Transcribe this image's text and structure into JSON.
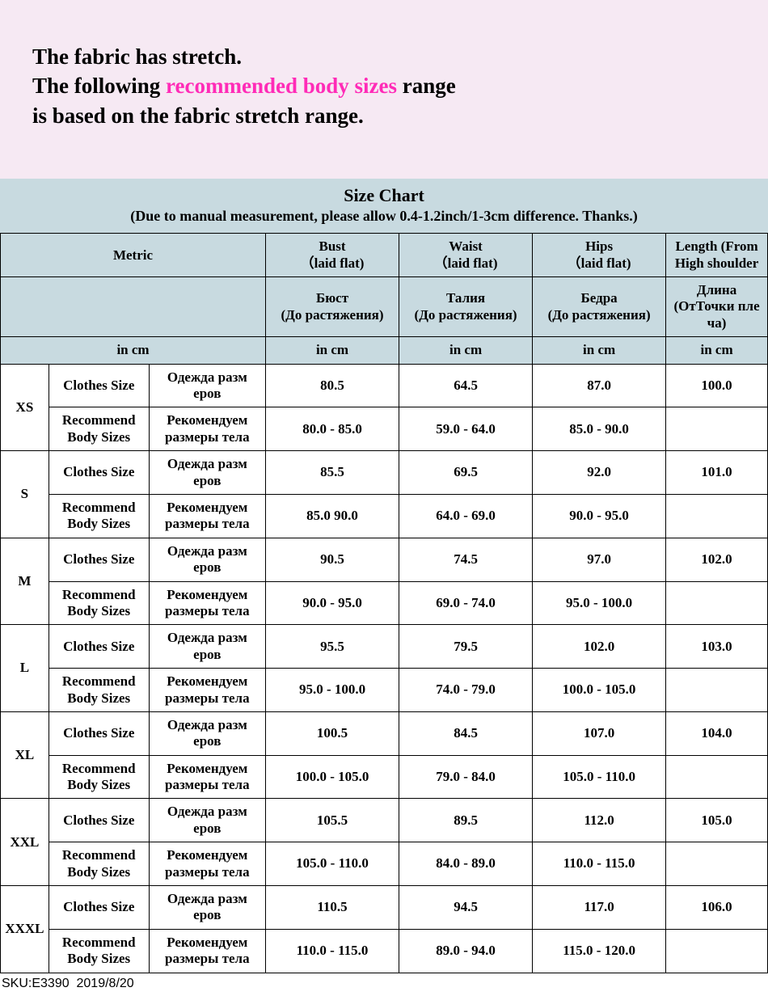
{
  "intro": {
    "line1": "The fabric has stretch.",
    "line2a": "The following ",
    "line2b_highlight": "recommended body sizes",
    "line2c": " range",
    "line3": "is based on the fabric stretch range.",
    "background_color": "#f6e9f3",
    "highlight_color": "#ff2bb7",
    "text_color": "#000000",
    "font_size_pt": 20
  },
  "chart": {
    "title": "Size Chart",
    "subtitle": "(Due to manual measurement, please allow 0.4-1.2inch/1-3cm difference. Thanks.)",
    "header_bg": "#c8dae0",
    "border_color": "#000000",
    "columns": {
      "metric": "Metric",
      "bust": "Bust\n（laid flat)",
      "waist": "Waist\n（laid flat)",
      "hips": "Hips\n（laid flat)",
      "length": "Length (From High shoulder",
      "bust_ru": "Бюст\n(До растяжения)",
      "waist_ru": "Талия\n(До растяжения)",
      "hips_ru": "Бедра\n(До растяжения)",
      "length_ru": "Длина (ОтТочки пле ча)",
      "unit": "in cm",
      "clothes_en": "Clothes Size",
      "clothes_ru": "Одежда разм еров",
      "recommend_en": "Recommend Body Sizes",
      "recommend_ru": "Рекомендуем размеры тела"
    },
    "sizes": [
      {
        "label": "XS",
        "clothes": {
          "bust": "80.5",
          "waist": "64.5",
          "hips": "87.0",
          "length": "100.0"
        },
        "rec": {
          "bust": "80.0  - 85.0",
          "waist": "59.0  - 64.0",
          "hips": "85.0  - 90.0",
          "length": ""
        }
      },
      {
        "label": "S",
        "clothes": {
          "bust": "85.5",
          "waist": "69.5",
          "hips": "92.0",
          "length": "101.0"
        },
        "rec": {
          "bust": "85.0    90.0",
          "waist": "64.0  - 69.0",
          "hips": "90.0  - 95.0",
          "length": ""
        }
      },
      {
        "label": "M",
        "clothes": {
          "bust": "90.5",
          "waist": "74.5",
          "hips": "97.0",
          "length": "102.0"
        },
        "rec": {
          "bust": "90.0  - 95.0",
          "waist": "69.0  - 74.0",
          "hips": "95.0  - 100.0",
          "length": ""
        }
      },
      {
        "label": "L",
        "clothes": {
          "bust": "95.5",
          "waist": "79.5",
          "hips": "102.0",
          "length": "103.0"
        },
        "rec": {
          "bust": "95.0  - 100.0",
          "waist": "74.0  - 79.0",
          "hips": "100.0  - 105.0",
          "length": ""
        }
      },
      {
        "label": "XL",
        "clothes": {
          "bust": "100.5",
          "waist": "84.5",
          "hips": "107.0",
          "length": "104.0"
        },
        "rec": {
          "bust": "100.0  - 105.0",
          "waist": "79.0  - 84.0",
          "hips": "105.0  - 110.0",
          "length": ""
        }
      },
      {
        "label": "XXL",
        "clothes": {
          "bust": "105.5",
          "waist": "89.5",
          "hips": "112.0",
          "length": "105.0"
        },
        "rec": {
          "bust": "105.0  - 110.0",
          "waist": "84.0  - 89.0",
          "hips": "110.0  - 115.0",
          "length": ""
        }
      },
      {
        "label": "XXXL",
        "clothes": {
          "bust": "110.5",
          "waist": "94.5",
          "hips": "117.0",
          "length": "106.0"
        },
        "rec": {
          "bust": "110.0  - 115.0",
          "waist": "89.0  - 94.0",
          "hips": "115.0  - 120.0",
          "length": ""
        }
      }
    ]
  },
  "footer": {
    "sku_label": "SKU:",
    "sku_value": "E3390",
    "date": "2019/8/20"
  }
}
